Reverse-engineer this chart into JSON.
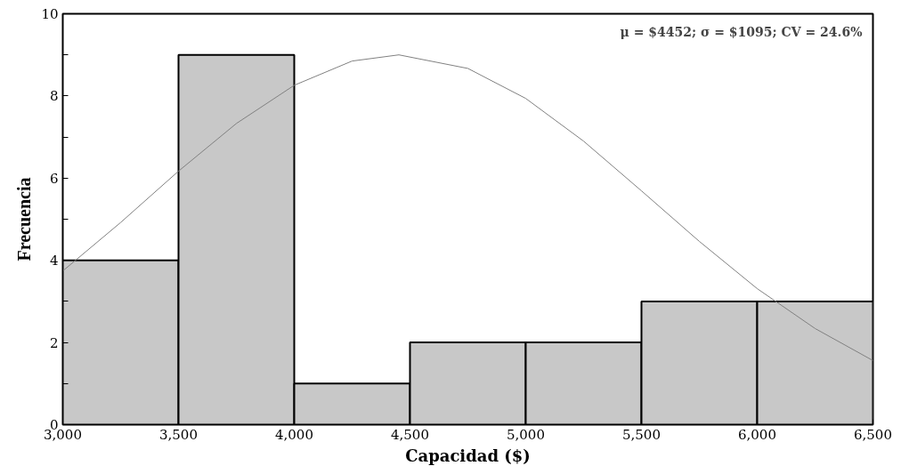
{
  "chart_data": {
    "type": "histogram",
    "xlabel": "Capacidad ($)",
    "ylabel": "Frecuencia",
    "annotations": [
      "μ = $4452; σ = $1095; CV = 24.6%"
    ],
    "series": [
      {
        "bins": [
          3000,
          3500,
          4000,
          4500,
          5000,
          5500,
          6000,
          6500
        ],
        "values": [
          4,
          9,
          1,
          2,
          2,
          3,
          3
        ],
        "color": "#c8c8c8"
      },
      {
        "type": "line",
        "x": [
          3000,
          3250,
          3500,
          3750,
          4000,
          4250,
          4452,
          4750,
          5000,
          5250,
          5500,
          5750,
          6000,
          6250,
          6500
        ],
        "values": [
          3.74,
          4.92,
          6.17,
          7.33,
          8.26,
          8.85,
          9.0,
          8.67,
          7.94,
          6.9,
          5.69,
          4.46,
          3.31,
          2.34,
          1.56
        ],
        "color": "#808080"
      }
    ],
    "xlim": [
      3000,
      6500
    ],
    "ylim": [
      0,
      10
    ],
    "xticks": [
      {
        "value": 3000,
        "label": "3,000"
      },
      {
        "value": 3500,
        "label": "3,500"
      },
      {
        "value": 4000,
        "label": "4,000"
      },
      {
        "value": 4500,
        "label": "4,500"
      },
      {
        "value": 5000,
        "label": "5,000"
      },
      {
        "value": 5500,
        "label": "5,500"
      },
      {
        "value": 6000,
        "label": "6,000"
      },
      {
        "value": 6500,
        "label": "6,500"
      }
    ],
    "yticks": [
      0,
      {
        "value": 1,
        "label": null
      },
      2,
      {
        "value": 3,
        "label": null
      },
      4,
      {
        "value": 5,
        "label": null
      },
      6,
      {
        "value": 7,
        "label": null
      },
      8,
      {
        "value": 9,
        "label": null
      },
      10
    ],
    "grid": false
  }
}
